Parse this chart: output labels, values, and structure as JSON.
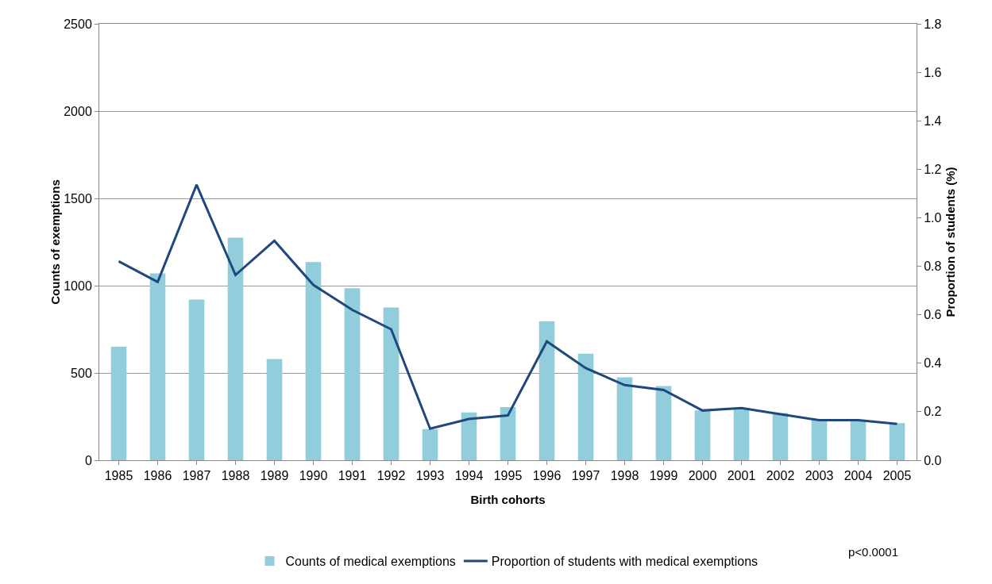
{
  "chart_data": {
    "type": "bar",
    "xlabel": "Birth cohorts",
    "ylabel": "Counts of exemptions",
    "y2label": "Proportion of students (%)",
    "categories": [
      "1985",
      "1986",
      "1987",
      "1988",
      "1989",
      "1990",
      "1991",
      "1992",
      "1993",
      "1994",
      "1995",
      "1996",
      "1997",
      "1998",
      "1999",
      "2000",
      "2001",
      "2002",
      "2003",
      "2004",
      "2005"
    ],
    "series": [
      {
        "name": "Counts of medical exemptions",
        "color": "#92cddc",
        "values": [
          650,
          1070,
          920,
          1275,
          580,
          1135,
          985,
          875,
          178,
          274,
          305,
          795,
          610,
          475,
          425,
          285,
          296,
          270,
          235,
          226,
          213
        ]
      },
      {
        "name": "Proportion of students with medical exemptions",
        "type": "line",
        "axis": "y2",
        "color": "#1f497d",
        "values": [
          0.82,
          0.735,
          1.136,
          0.764,
          0.905,
          0.723,
          0.62,
          0.54,
          0.13,
          0.17,
          0.185,
          0.49,
          0.38,
          0.31,
          0.29,
          0.205,
          0.215,
          0.19,
          0.165,
          0.165,
          0.15
        ]
      }
    ],
    "ylim": [
      0,
      2500
    ],
    "yticks": [
      0,
      500,
      1000,
      1500,
      2000,
      2500
    ],
    "y2lim": [
      0,
      1.8
    ],
    "y2ticks": [
      {
        "value": 0,
        "label": "0.0"
      },
      {
        "value": 0.2,
        "label": "0.2"
      },
      {
        "value": 0.4,
        "label": "0.4"
      },
      {
        "value": 0.6,
        "label": "0.6"
      },
      {
        "value": 0.8,
        "label": "0.8"
      },
      {
        "value": 1,
        "label": "1.0"
      },
      {
        "value": 1.2,
        "label": "1.2"
      },
      {
        "value": 1.4,
        "label": "1.4"
      },
      {
        "value": 1.6,
        "label": "1.6"
      },
      {
        "value": 1.8,
        "label": "1.8"
      }
    ],
    "grid": "y",
    "legend": "bottom",
    "marker": "none",
    "line_style": "solid",
    "annotations": [
      "p<0.0001"
    ]
  }
}
